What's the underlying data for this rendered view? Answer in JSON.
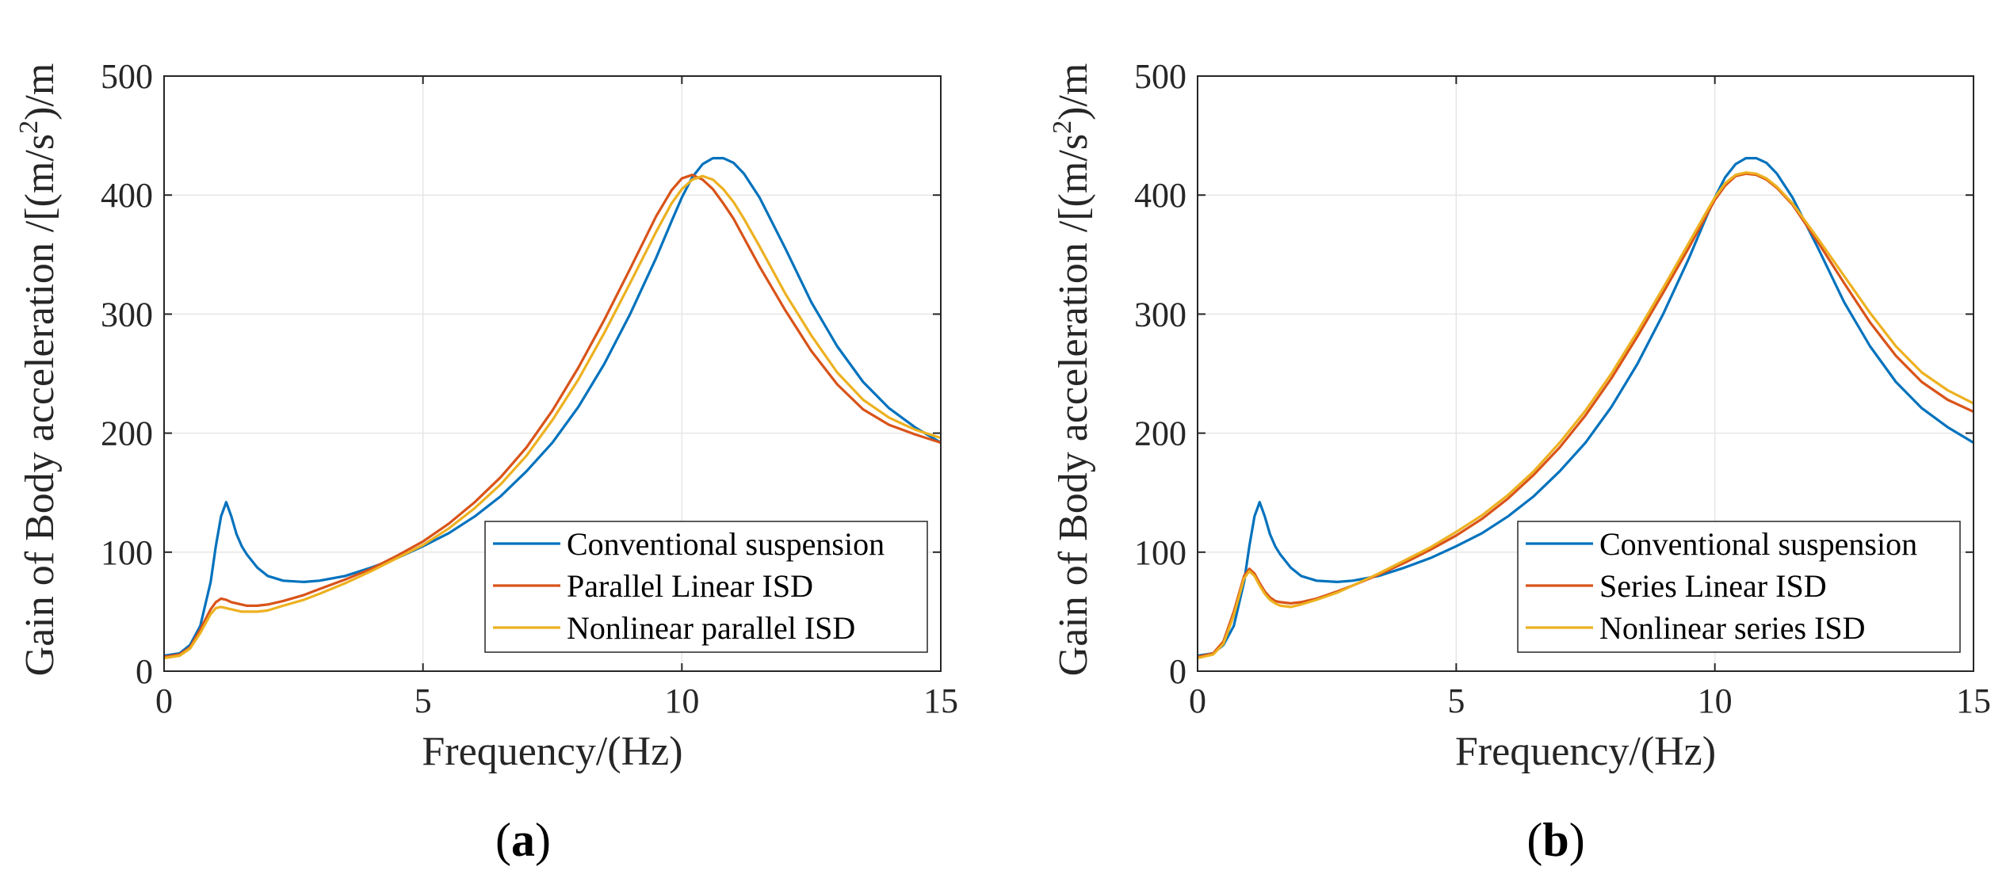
{
  "figure": {
    "panels": [
      {
        "label_open": "(",
        "label_letter": "a",
        "label_close": ")"
      },
      {
        "label_open": "(",
        "label_letter": "b",
        "label_close": ")"
      }
    ]
  },
  "colors": {
    "conventional": "#0072BD",
    "linear": "#D95319",
    "nonlinear": "#EDB120",
    "axis": "#262626",
    "grid": "#e6e6e6"
  },
  "chart_data": [
    {
      "type": "line",
      "xlabel": "Frequency/(Hz)",
      "ylabel": "Gain of Body acceleration /[(m/s",
      "ylabel_sup": "2",
      "ylabel_end": ")/m",
      "xlim": [
        0,
        15
      ],
      "ylim": [
        0,
        500
      ],
      "xticks": [
        0,
        5,
        10,
        15
      ],
      "yticks": [
        0,
        100,
        200,
        300,
        400,
        500
      ],
      "grid": true,
      "legend_position": "bottom-right",
      "x": [
        0,
        0.3,
        0.5,
        0.7,
        0.9,
        1.0,
        1.1,
        1.2,
        1.3,
        1.4,
        1.5,
        1.6,
        1.8,
        2.0,
        2.3,
        2.7,
        3.0,
        3.5,
        4.0,
        4.5,
        5.0,
        5.5,
        6.0,
        6.5,
        7.0,
        7.5,
        8.0,
        8.5,
        9.0,
        9.5,
        9.8,
        10.0,
        10.2,
        10.4,
        10.6,
        10.8,
        11.0,
        11.2,
        11.5,
        12.0,
        12.5,
        13.0,
        13.5,
        14.0,
        14.5,
        15.0
      ],
      "series": [
        {
          "name": "Conventional suspension",
          "color_key": "conventional",
          "values": [
            13,
            15,
            22,
            38,
            75,
            105,
            130,
            142,
            130,
            115,
            105,
            98,
            87,
            80,
            76,
            75,
            76,
            80,
            87,
            95,
            105,
            116,
            130,
            147,
            168,
            192,
            222,
            258,
            300,
            347,
            378,
            398,
            415,
            426,
            431,
            431,
            427,
            418,
            398,
            355,
            310,
            273,
            243,
            221,
            205,
            192
          ]
        },
        {
          "name": "Parallel Linear ISD",
          "color_key": "linear",
          "values": [
            12,
            14,
            20,
            35,
            52,
            58,
            61,
            60,
            58,
            57,
            56,
            55,
            55,
            56,
            59,
            64,
            69,
            77,
            86,
            97,
            109,
            124,
            142,
            163,
            188,
            219,
            255,
            295,
            338,
            382,
            404,
            414,
            417,
            413,
            405,
            393,
            380,
            364,
            340,
            303,
            269,
            241,
            220,
            207,
            199,
            192
          ]
        },
        {
          "name": "Nonlinear parallel ISD",
          "color_key": "nonlinear",
          "values": [
            11,
            13,
            19,
            32,
            48,
            53,
            54,
            53,
            52,
            51,
            50,
            50,
            50,
            51,
            55,
            60,
            65,
            74,
            84,
            95,
            106,
            120,
            137,
            157,
            181,
            211,
            245,
            284,
            326,
            369,
            393,
            405,
            413,
            416,
            413,
            405,
            394,
            380,
            357,
            317,
            282,
            251,
            228,
            213,
            203,
            196
          ]
        }
      ]
    },
    {
      "type": "line",
      "xlabel": "Frequency/(Hz)",
      "ylabel": "Gain of Body acceleration /[(m/s",
      "ylabel_sup": "2",
      "ylabel_end": ")/m",
      "xlim": [
        0,
        15
      ],
      "ylim": [
        0,
        500
      ],
      "xticks": [
        0,
        5,
        10,
        15
      ],
      "yticks": [
        0,
        100,
        200,
        300,
        400,
        500
      ],
      "grid": true,
      "legend_position": "bottom-right",
      "x": [
        0,
        0.3,
        0.5,
        0.7,
        0.9,
        1.0,
        1.1,
        1.2,
        1.3,
        1.4,
        1.5,
        1.6,
        1.8,
        2.0,
        2.3,
        2.7,
        3.0,
        3.5,
        4.0,
        4.5,
        5.0,
        5.5,
        6.0,
        6.5,
        7.0,
        7.5,
        8.0,
        8.5,
        9.0,
        9.5,
        9.8,
        10.0,
        10.2,
        10.4,
        10.6,
        10.8,
        11.0,
        11.2,
        11.5,
        12.0,
        12.5,
        13.0,
        13.5,
        14.0,
        14.5,
        15.0
      ],
      "series": [
        {
          "name": "Conventional suspension",
          "color_key": "conventional",
          "values": [
            13,
            15,
            22,
            38,
            75,
            105,
            130,
            142,
            130,
            115,
            105,
            98,
            87,
            80,
            76,
            75,
            76,
            80,
            87,
            95,
            105,
            116,
            130,
            147,
            168,
            192,
            222,
            258,
            300,
            347,
            378,
            398,
            415,
            426,
            431,
            431,
            427,
            418,
            398,
            355,
            310,
            273,
            243,
            221,
            205,
            192
          ]
        },
        {
          "name": "Series Linear ISD",
          "color_key": "linear",
          "values": [
            12,
            15,
            25,
            50,
            80,
            86,
            82,
            74,
            67,
            62,
            59,
            58,
            57,
            58,
            61,
            67,
            72,
            81,
            91,
            102,
            114,
            128,
            145,
            165,
            188,
            215,
            246,
            281,
            318,
            356,
            380,
            396,
            408,
            416,
            418,
            417,
            413,
            406,
            392,
            360,
            326,
            293,
            265,
            243,
            228,
            218
          ]
        },
        {
          "name": "Nonlinear series ISD",
          "color_key": "nonlinear",
          "values": [
            11,
            14,
            23,
            47,
            78,
            84,
            80,
            72,
            65,
            60,
            57,
            55,
            54,
            56,
            60,
            66,
            72,
            82,
            93,
            104,
            117,
            131,
            148,
            168,
            192,
            219,
            250,
            285,
            322,
            360,
            383,
            398,
            410,
            417,
            419,
            418,
            414,
            407,
            393,
            363,
            332,
            301,
            273,
            251,
            236,
            225
          ]
        }
      ]
    }
  ]
}
